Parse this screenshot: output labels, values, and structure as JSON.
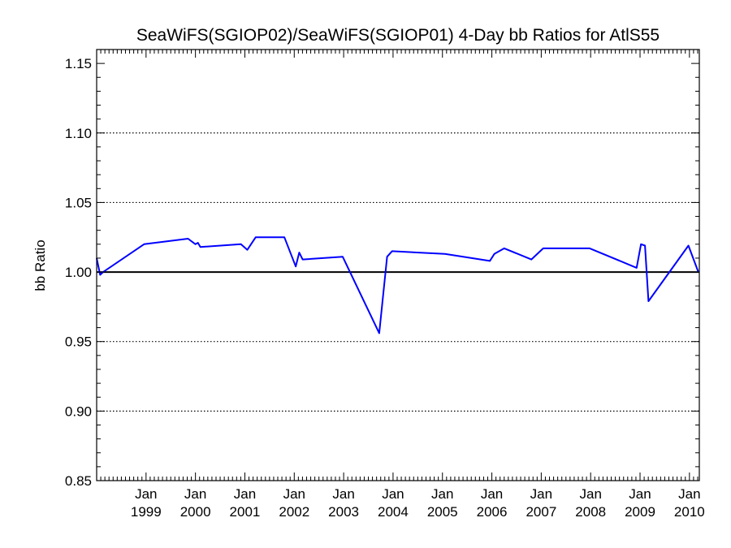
{
  "chart_data": {
    "type": "line",
    "title": "SeaWiFS(SGIOP02)/SeaWiFS(SGIOP01) 4-Day bb Ratios for AtlS55",
    "xlabel": "",
    "ylabel": "bb Ratio",
    "xlim": [
      1998.0,
      2010.2
    ],
    "ylim": [
      0.85,
      1.16
    ],
    "yticks": [
      0.85,
      0.9,
      0.95,
      1.0,
      1.05,
      1.1,
      1.15
    ],
    "ytick_labels": [
      "0.85",
      "0.90",
      "0.95",
      "1.00",
      "1.05",
      "1.10",
      "1.15"
    ],
    "xticks": [
      {
        "x": 1999.0,
        "line1": "Jan",
        "line2": "1999"
      },
      {
        "x": 2000.0,
        "line1": "Jan",
        "line2": "2000"
      },
      {
        "x": 2001.0,
        "line1": "Jan",
        "line2": "2001"
      },
      {
        "x": 2002.0,
        "line1": "Jan",
        "line2": "2002"
      },
      {
        "x": 2003.0,
        "line1": "Jan",
        "line2": "2003"
      },
      {
        "x": 2004.0,
        "line1": "Jan",
        "line2": "2004"
      },
      {
        "x": 2005.0,
        "line1": "Jan",
        "line2": "2005"
      },
      {
        "x": 2006.0,
        "line1": "Jan",
        "line2": "2006"
      },
      {
        "x": 2007.0,
        "line1": "Jan",
        "line2": "2007"
      },
      {
        "x": 2008.0,
        "line1": "Jan",
        "line2": "2008"
      },
      {
        "x": 2009.0,
        "line1": "Jan",
        "line2": "2009"
      },
      {
        "x": 2010.0,
        "line1": "Jan",
        "line2": "2010"
      }
    ],
    "grid_y_dotted": [
      0.9,
      0.95,
      1.05,
      1.1
    ],
    "reference_line": 1.0,
    "series": [
      {
        "color": "#0000ff",
        "x": [
          1998.0,
          1998.07,
          1998.13,
          1998.96,
          1999.85,
          2000.0,
          2000.05,
          2000.1,
          2000.92,
          2001.05,
          2001.22,
          2001.8,
          2002.03,
          2002.1,
          2002.17,
          2002.98,
          2003.72,
          2003.88,
          2003.98,
          2005.05,
          2005.96,
          2006.05,
          2006.25,
          2006.8,
          2007.04,
          2007.98,
          2008.93,
          2009.02,
          2009.1,
          2009.17,
          2009.98,
          2010.18
        ],
        "y": [
          1.01,
          0.998,
          1.0,
          1.02,
          1.024,
          1.02,
          1.021,
          1.018,
          1.02,
          1.016,
          1.025,
          1.025,
          1.004,
          1.014,
          1.009,
          1.011,
          0.956,
          1.011,
          1.015,
          1.013,
          1.008,
          1.013,
          1.017,
          1.009,
          1.017,
          1.017,
          1.003,
          1.02,
          1.019,
          0.979,
          1.019,
          1.0
        ]
      }
    ]
  }
}
